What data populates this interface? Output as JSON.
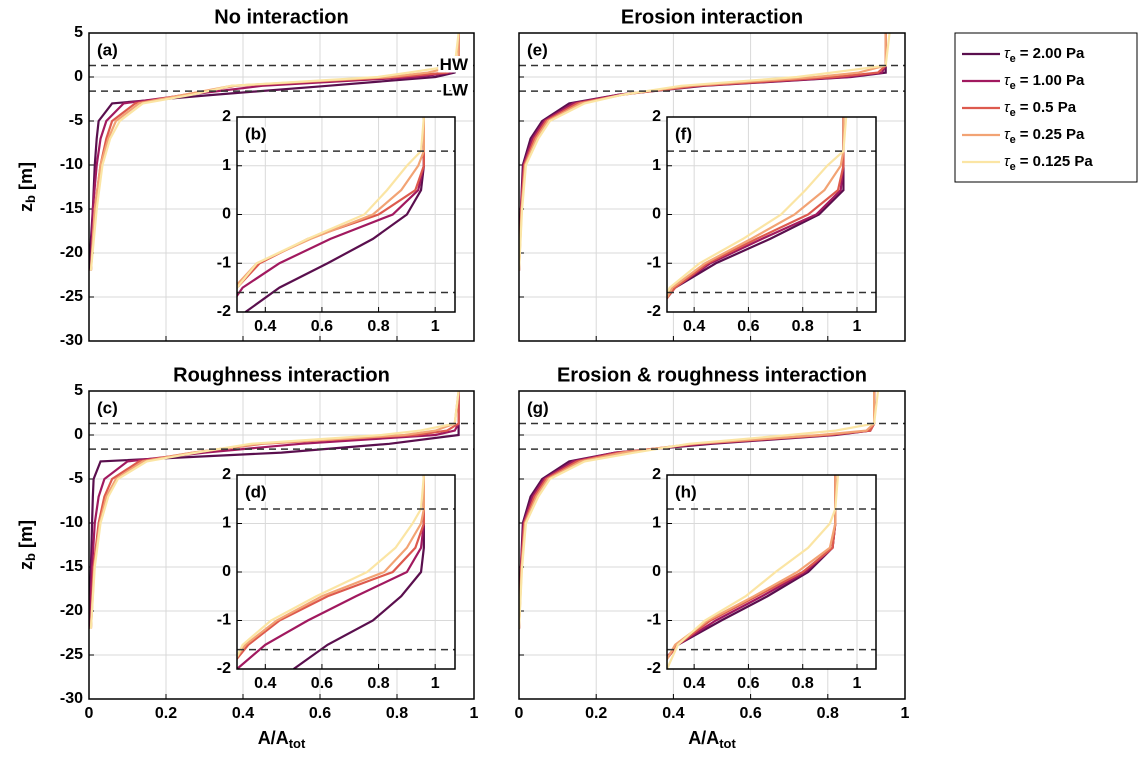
{
  "legend": {
    "symbol": "τ",
    "symbol_sub": "e",
    "loc": "outside upper right"
  },
  "chart_data": [
    {
      "type": "line",
      "title": "No interaction",
      "panel_label": "(a)",
      "ylabel": "z",
      "ylabel_sub": "b",
      "ylabel_unit": "[m]",
      "xlim": [
        0,
        1
      ],
      "ylim": [
        -30,
        5
      ],
      "xticks": [
        0,
        0.2,
        0.4,
        0.6,
        0.8,
        1
      ],
      "yticks": [
        -30,
        -25,
        -20,
        -15,
        -10,
        -5,
        0,
        5
      ],
      "xtick_labels": false,
      "ytick_labels": true,
      "grid": true,
      "hlines": [
        1.3,
        -1.6
      ],
      "hline_labels": [
        "HW",
        "LW"
      ],
      "y": [
        -22,
        -15,
        -10,
        -7,
        -5,
        -3,
        -2,
        -1,
        0,
        0.5,
        1.3,
        5
      ],
      "series": [
        {
          "name": "= 2.00 Pa",
          "color": "#5a0f4e",
          "values": [
            0,
            0.01,
            0.015,
            0.02,
            0.025,
            0.06,
            0.33,
            0.62,
            0.9,
            0.95,
            0.96,
            0.96
          ]
        },
        {
          "name": "= 1.00 Pa",
          "color": "#a1195f",
          "values": [
            0.005,
            0.01,
            0.02,
            0.03,
            0.045,
            0.09,
            0.26,
            0.45,
            0.85,
            0.94,
            0.96,
            0.96
          ]
        },
        {
          "name": "= 0.5 Pa",
          "color": "#dd5a4e",
          "values": [
            0.005,
            0.015,
            0.03,
            0.045,
            0.06,
            0.12,
            0.25,
            0.38,
            0.8,
            0.93,
            0.96,
            0.96
          ]
        },
        {
          "name": "= 0.25 Pa",
          "color": "#f2a374",
          "values": [
            0.005,
            0.015,
            0.03,
            0.05,
            0.07,
            0.13,
            0.25,
            0.37,
            0.78,
            0.88,
            0.96,
            0.96
          ]
        },
        {
          "name": "= 0.125 Pa",
          "color": "#fbe5a4",
          "values": [
            0.005,
            0.02,
            0.035,
            0.055,
            0.08,
            0.14,
            0.27,
            0.37,
            0.75,
            0.83,
            0.95,
            0.96
          ]
        }
      ]
    },
    {
      "type": "line",
      "panel_label": "(b)",
      "xlim": [
        0.3,
        1.07
      ],
      "ylim": [
        -2,
        2
      ],
      "xticks": [
        0.4,
        0.6,
        0.8,
        1
      ],
      "yticks": [
        -2,
        -1,
        0,
        1,
        2
      ],
      "xtick_labels": true,
      "ytick_labels": true,
      "grid": true,
      "hlines": [
        1.3,
        -1.6
      ],
      "y": [
        -2,
        -1.5,
        -1,
        -0.5,
        0,
        0.5,
        1,
        1.3,
        2
      ],
      "series": [
        {
          "color": "#5a0f4e",
          "values": [
            0.33,
            0.45,
            0.62,
            0.78,
            0.9,
            0.95,
            0.96,
            0.96,
            0.96
          ]
        },
        {
          "color": "#a1195f",
          "values": [
            0.26,
            0.32,
            0.45,
            0.63,
            0.85,
            0.94,
            0.96,
            0.96,
            0.96
          ]
        },
        {
          "color": "#dd5a4e",
          "values": [
            0.25,
            0.3,
            0.38,
            0.55,
            0.8,
            0.93,
            0.96,
            0.96,
            0.96
          ]
        },
        {
          "color": "#f2a374",
          "values": [
            0.25,
            0.29,
            0.37,
            0.56,
            0.78,
            0.88,
            0.94,
            0.96,
            0.96
          ]
        },
        {
          "color": "#fbe5a4",
          "values": [
            0.27,
            0.3,
            0.37,
            0.55,
            0.75,
            0.83,
            0.9,
            0.95,
            0.96
          ]
        }
      ]
    },
    {
      "type": "line",
      "title": "Erosion interaction",
      "panel_label": "(e)",
      "xlim": [
        0,
        1
      ],
      "ylim": [
        -30,
        5
      ],
      "xticks": [
        0,
        0.2,
        0.4,
        0.6,
        0.8,
        1
      ],
      "yticks": [
        -30,
        -25,
        -20,
        -15,
        -10,
        -5,
        0,
        5
      ],
      "xtick_labels": false,
      "ytick_labels": false,
      "grid": true,
      "hlines": [
        1.3,
        -1.6
      ],
      "y": [
        -22,
        -15,
        -10,
        -7,
        -5,
        -3,
        -2,
        -1,
        0,
        0.5,
        1.3,
        5
      ],
      "series": [
        {
          "color": "#5a0f4e",
          "values": [
            0,
            0.005,
            0.01,
            0.03,
            0.06,
            0.13,
            0.26,
            0.48,
            0.86,
            0.95,
            0.95,
            0.95
          ]
        },
        {
          "color": "#a1195f",
          "values": [
            0,
            0.005,
            0.012,
            0.035,
            0.065,
            0.14,
            0.26,
            0.47,
            0.85,
            0.94,
            0.95,
            0.95
          ]
        },
        {
          "color": "#dd5a4e",
          "values": [
            0,
            0.006,
            0.014,
            0.04,
            0.07,
            0.15,
            0.27,
            0.46,
            0.82,
            0.93,
            0.95,
            0.95
          ]
        },
        {
          "color": "#f2a374",
          "values": [
            0,
            0.007,
            0.016,
            0.045,
            0.075,
            0.16,
            0.27,
            0.44,
            0.77,
            0.88,
            0.95,
            0.95
          ]
        },
        {
          "color": "#fbe5a4",
          "values": [
            0,
            0.008,
            0.018,
            0.05,
            0.08,
            0.17,
            0.27,
            0.42,
            0.72,
            0.81,
            0.95,
            0.96
          ]
        }
      ]
    },
    {
      "type": "line",
      "panel_label": "(f)",
      "xlim": [
        0.3,
        1.07
      ],
      "ylim": [
        -2,
        2
      ],
      "xticks": [
        0.4,
        0.6,
        0.8,
        1
      ],
      "yticks": [
        -2,
        -1,
        0,
        1,
        2
      ],
      "xtick_labels": true,
      "ytick_labels": true,
      "grid": true,
      "hlines": [
        1.3,
        -1.6
      ],
      "y": [
        -2,
        -1.5,
        -1,
        -0.5,
        0,
        0.5,
        1,
        1.3,
        2
      ],
      "series": [
        {
          "color": "#5a0f4e",
          "values": [
            0.26,
            0.33,
            0.48,
            0.68,
            0.86,
            0.95,
            0.95,
            0.95,
            0.95
          ]
        },
        {
          "color": "#a1195f",
          "values": [
            0.25,
            0.33,
            0.46,
            0.65,
            0.85,
            0.94,
            0.95,
            0.95,
            0.95
          ]
        },
        {
          "color": "#dd5a4e",
          "values": [
            0.26,
            0.33,
            0.45,
            0.63,
            0.82,
            0.93,
            0.95,
            0.95,
            0.95
          ]
        },
        {
          "color": "#f2a374",
          "values": [
            0.27,
            0.32,
            0.44,
            0.61,
            0.77,
            0.88,
            0.94,
            0.95,
            0.95
          ]
        },
        {
          "color": "#fbe5a4",
          "values": [
            0.27,
            0.31,
            0.42,
            0.58,
            0.72,
            0.81,
            0.89,
            0.95,
            0.96
          ]
        }
      ]
    },
    {
      "type": "line",
      "title": "Roughness interaction",
      "panel_label": "(c)",
      "ylabel": "z",
      "ylabel_sub": "b",
      "ylabel_unit": "[m]",
      "xlabel": "A/A",
      "xlabel_sub": "tot",
      "xlim": [
        0,
        1
      ],
      "ylim": [
        -30,
        5
      ],
      "xticks": [
        0,
        0.2,
        0.4,
        0.6,
        0.8,
        1
      ],
      "yticks": [
        -30,
        -25,
        -20,
        -15,
        -10,
        -5,
        0,
        5
      ],
      "xtick_labels": true,
      "ytick_labels": true,
      "grid": true,
      "hlines": [
        1.3,
        -1.6
      ],
      "y": [
        -22,
        -15,
        -10,
        -7,
        -5,
        -3,
        -2,
        -1,
        0,
        0.5,
        1.3,
        5
      ],
      "series": [
        {
          "color": "#5a0f4e",
          "values": [
            0,
            0.005,
            0.008,
            0.01,
            0.012,
            0.03,
            0.5,
            0.78,
            0.96,
            0.96,
            0.96,
            0.96
          ]
        },
        {
          "color": "#a1195f",
          "values": [
            0,
            0.008,
            0.015,
            0.025,
            0.04,
            0.1,
            0.3,
            0.55,
            0.9,
            0.95,
            0.96,
            0.96
          ]
        },
        {
          "color": "#dd5a4e",
          "values": [
            0.005,
            0.012,
            0.025,
            0.04,
            0.06,
            0.13,
            0.27,
            0.45,
            0.85,
            0.93,
            0.96,
            0.96
          ]
        },
        {
          "color": "#f2a374",
          "values": [
            0.005,
            0.014,
            0.028,
            0.045,
            0.07,
            0.14,
            0.27,
            0.44,
            0.82,
            0.9,
            0.95,
            0.96
          ]
        },
        {
          "color": "#fbe5a4",
          "values": [
            0.005,
            0.015,
            0.03,
            0.05,
            0.075,
            0.15,
            0.28,
            0.42,
            0.76,
            0.86,
            0.95,
            0.96
          ]
        }
      ]
    },
    {
      "type": "line",
      "panel_label": "(d)",
      "xlim": [
        0.3,
        1.07
      ],
      "ylim": [
        -2,
        2
      ],
      "xticks": [
        0.4,
        0.6,
        0.8,
        1
      ],
      "yticks": [
        -2,
        -1,
        0,
        1,
        2
      ],
      "xtick_labels": true,
      "ytick_labels": true,
      "grid": true,
      "hlines": [
        1.3,
        -1.6
      ],
      "y": [
        -2,
        -1.5,
        -1,
        -0.5,
        0,
        0.5,
        1,
        1.3,
        2
      ],
      "series": [
        {
          "color": "#5a0f4e",
          "values": [
            0.5,
            0.62,
            0.78,
            0.88,
            0.95,
            0.96,
            0.96,
            0.96,
            0.96
          ]
        },
        {
          "color": "#a1195f",
          "values": [
            0.3,
            0.4,
            0.55,
            0.72,
            0.9,
            0.95,
            0.96,
            0.96,
            0.96
          ]
        },
        {
          "color": "#dd5a4e",
          "values": [
            0.27,
            0.34,
            0.45,
            0.62,
            0.85,
            0.93,
            0.96,
            0.96,
            0.96
          ]
        },
        {
          "color": "#f2a374",
          "values": [
            0.27,
            0.33,
            0.44,
            0.6,
            0.82,
            0.9,
            0.95,
            0.96,
            0.96
          ]
        },
        {
          "color": "#fbe5a4",
          "values": [
            0.28,
            0.32,
            0.42,
            0.58,
            0.76,
            0.86,
            0.92,
            0.95,
            0.96
          ]
        }
      ]
    },
    {
      "type": "line",
      "title": "Erosion & roughness interaction",
      "panel_label": "(g)",
      "xlabel": "A/A",
      "xlabel_sub": "tot",
      "xlim": [
        0,
        1
      ],
      "ylim": [
        -30,
        5
      ],
      "xticks": [
        0,
        0.2,
        0.4,
        0.6,
        0.8,
        1
      ],
      "yticks": [
        -30,
        -25,
        -20,
        -15,
        -10,
        -5,
        0,
        5
      ],
      "xtick_labels": true,
      "ytick_labels": false,
      "grid": true,
      "hlines": [
        1.3,
        -1.6
      ],
      "y": [
        -22,
        -15,
        -10,
        -7,
        -5,
        -3,
        -2,
        -1,
        0,
        0.5,
        1.3,
        5
      ],
      "series": [
        {
          "color": "#5a0f4e",
          "values": [
            0,
            0.005,
            0.01,
            0.03,
            0.06,
            0.13,
            0.25,
            0.5,
            0.82,
            0.91,
            0.92,
            0.92
          ]
        },
        {
          "color": "#a1195f",
          "values": [
            0,
            0.005,
            0.012,
            0.035,
            0.065,
            0.14,
            0.25,
            0.48,
            0.81,
            0.91,
            0.92,
            0.92
          ]
        },
        {
          "color": "#dd5a4e",
          "values": [
            0,
            0.006,
            0.014,
            0.04,
            0.07,
            0.15,
            0.26,
            0.46,
            0.8,
            0.91,
            0.92,
            0.92
          ]
        },
        {
          "color": "#f2a374",
          "values": [
            0,
            0.007,
            0.016,
            0.045,
            0.075,
            0.16,
            0.27,
            0.45,
            0.78,
            0.9,
            0.92,
            0.92
          ]
        },
        {
          "color": "#fbe5a4",
          "values": [
            0,
            0.008,
            0.018,
            0.05,
            0.08,
            0.17,
            0.3,
            0.44,
            0.7,
            0.82,
            0.92,
            0.93
          ]
        }
      ]
    },
    {
      "type": "line",
      "panel_label": "(h)",
      "xlim": [
        0.3,
        1.07
      ],
      "ylim": [
        -2,
        2
      ],
      "xticks": [
        0.4,
        0.6,
        0.8,
        1
      ],
      "yticks": [
        -2,
        -1,
        0,
        1,
        2
      ],
      "xtick_labels": true,
      "ytick_labels": true,
      "grid": true,
      "hlines": [
        1.3,
        -1.6
      ],
      "y": [
        -2,
        -1.5,
        -1,
        -0.5,
        0,
        0.5,
        1,
        1.3,
        2
      ],
      "series": [
        {
          "color": "#5a0f4e",
          "values": [
            0.27,
            0.34,
            0.5,
            0.67,
            0.82,
            0.91,
            0.92,
            0.92,
            0.92
          ]
        },
        {
          "color": "#a1195f",
          "values": [
            0.26,
            0.34,
            0.48,
            0.65,
            0.81,
            0.91,
            0.92,
            0.92,
            0.92
          ]
        },
        {
          "color": "#dd5a4e",
          "values": [
            0.27,
            0.34,
            0.46,
            0.63,
            0.8,
            0.91,
            0.92,
            0.92,
            0.92
          ]
        },
        {
          "color": "#f2a374",
          "values": [
            0.28,
            0.33,
            0.45,
            0.62,
            0.78,
            0.9,
            0.92,
            0.92,
            0.92
          ]
        },
        {
          "color": "#fbe5a4",
          "values": [
            0.3,
            0.34,
            0.44,
            0.59,
            0.7,
            0.82,
            0.9,
            0.92,
            0.93
          ]
        }
      ]
    }
  ]
}
